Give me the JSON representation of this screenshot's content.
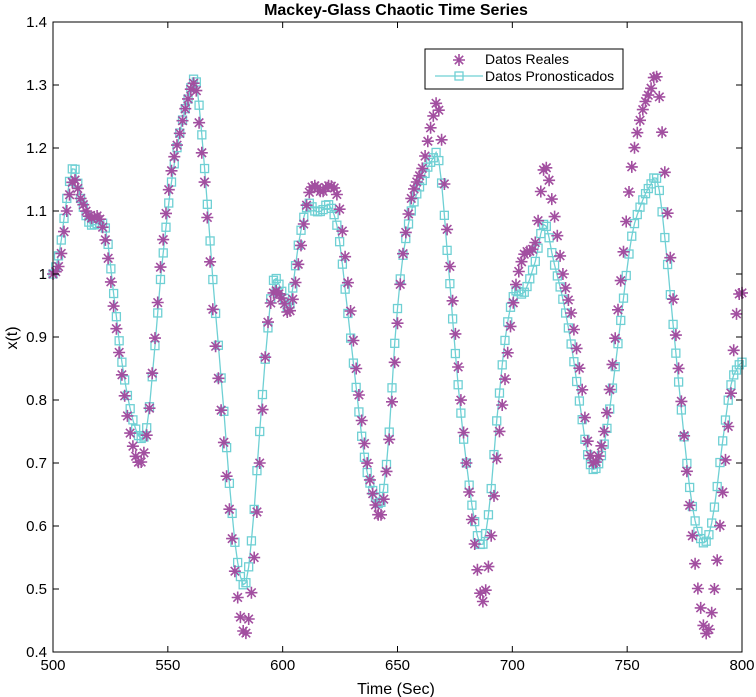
{
  "chart_data": {
    "type": "line",
    "title": "Mackey-Glass Chaotic Time Series",
    "xlabel": "Time (Sec)",
    "ylabel": "x(t)",
    "xlim": [
      500,
      800
    ],
    "ylim": [
      0.4,
      1.4
    ],
    "xticks": [
      500,
      550,
      600,
      650,
      700,
      750,
      800
    ],
    "yticks": [
      0.4,
      0.5,
      0.6,
      0.7,
      0.8,
      0.9,
      1,
      1.1,
      1.2,
      1.3,
      1.4
    ],
    "ytick_labels": [
      "0.4",
      "0.5",
      "0.6",
      "0.7",
      "0.8",
      "0.9",
      "1",
      "1.1",
      "1.2",
      "1.3",
      "1.4"
    ],
    "xtick_labels": [
      "500",
      "550",
      "600",
      "650",
      "700",
      "750",
      "800"
    ],
    "legend": {
      "location": "top-right",
      "entries": [
        "Datos Reales",
        "Datos Pronosticados"
      ]
    },
    "series": [
      {
        "name": "Datos Reales",
        "marker": "asterisk",
        "color": "#a24fa0",
        "keypoints": [
          [
            500,
            1.0
          ],
          [
            503,
            1.02
          ],
          [
            506,
            1.1
          ],
          [
            509,
            1.15
          ],
          [
            512,
            1.12
          ],
          [
            516,
            1.09
          ],
          [
            520,
            1.09
          ],
          [
            523,
            1.05
          ],
          [
            526,
            0.96
          ],
          [
            530,
            0.84
          ],
          [
            534,
            0.74
          ],
          [
            538,
            0.7
          ],
          [
            541,
            0.75
          ],
          [
            544,
            0.88
          ],
          [
            547,
            1.02
          ],
          [
            551,
            1.15
          ],
          [
            555,
            1.22
          ],
          [
            559,
            1.28
          ],
          [
            562,
            1.3
          ],
          [
            564,
            1.22
          ],
          [
            567,
            1.1
          ],
          [
            570,
            0.92
          ],
          [
            574,
            0.75
          ],
          [
            578,
            0.58
          ],
          [
            581,
            0.47
          ],
          [
            584,
            0.43
          ],
          [
            587,
            0.52
          ],
          [
            590,
            0.7
          ],
          [
            593,
            0.9
          ],
          [
            596,
            0.97
          ],
          [
            600,
            0.96
          ],
          [
            603,
            0.94
          ],
          [
            607,
            1.02
          ],
          [
            611,
            1.12
          ],
          [
            614,
            1.14
          ],
          [
            617,
            1.13
          ],
          [
            620,
            1.14
          ],
          [
            624,
            1.12
          ],
          [
            628,
            1.0
          ],
          [
            632,
            0.85
          ],
          [
            636,
            0.72
          ],
          [
            640,
            0.64
          ],
          [
            643,
            0.62
          ],
          [
            646,
            0.72
          ],
          [
            649,
            0.87
          ],
          [
            652,
            1.02
          ],
          [
            656,
            1.12
          ],
          [
            661,
            1.17
          ],
          [
            665,
            1.24
          ],
          [
            668,
            1.26
          ],
          [
            672,
            1.05
          ],
          [
            676,
            0.87
          ],
          [
            680,
            0.7
          ],
          [
            684,
            0.56
          ],
          [
            687,
            0.48
          ],
          [
            690,
            0.55
          ],
          [
            693,
            0.7
          ],
          [
            697,
            0.84
          ],
          [
            701,
            0.97
          ],
          [
            705,
            1.03
          ],
          [
            710,
            1.05
          ],
          [
            714,
            1.17
          ],
          [
            718,
            1.1
          ],
          [
            722,
            1.0
          ],
          [
            726,
            0.93
          ],
          [
            730,
            0.83
          ],
          [
            733,
            0.73
          ],
          [
            736,
            0.7
          ],
          [
            740,
            0.75
          ],
          [
            744,
            0.87
          ],
          [
            748,
            1.02
          ],
          [
            752,
            1.17
          ],
          [
            756,
            1.25
          ],
          [
            760,
            1.29
          ],
          [
            763,
            1.31
          ],
          [
            766,
            1.18
          ],
          [
            770,
            0.96
          ],
          [
            774,
            0.78
          ],
          [
            778,
            0.6
          ],
          [
            782,
            0.47
          ],
          [
            785,
            0.43
          ],
          [
            788,
            0.5
          ],
          [
            791,
            0.63
          ],
          [
            795,
            0.8
          ],
          [
            798,
            0.95
          ],
          [
            800,
            0.97
          ]
        ]
      },
      {
        "name": "Datos Pronosticados",
        "marker": "square",
        "color": "#6fd0d4",
        "keypoints": [
          [
            500,
            1.0
          ],
          [
            503,
            1.04
          ],
          [
            506,
            1.12
          ],
          [
            509,
            1.17
          ],
          [
            512,
            1.12
          ],
          [
            516,
            1.08
          ],
          [
            520,
            1.08
          ],
          [
            523,
            1.07
          ],
          [
            526,
            0.98
          ],
          [
            530,
            0.86
          ],
          [
            534,
            0.78
          ],
          [
            538,
            0.74
          ],
          [
            541,
            0.76
          ],
          [
            544,
            0.87
          ],
          [
            547,
            1.0
          ],
          [
            551,
            1.13
          ],
          [
            555,
            1.22
          ],
          [
            559,
            1.28
          ],
          [
            562,
            1.31
          ],
          [
            564,
            1.25
          ],
          [
            567,
            1.12
          ],
          [
            570,
            0.97
          ],
          [
            574,
            0.8
          ],
          [
            578,
            0.62
          ],
          [
            581,
            0.53
          ],
          [
            584,
            0.51
          ],
          [
            587,
            0.6
          ],
          [
            590,
            0.75
          ],
          [
            593,
            0.89
          ],
          [
            596,
            0.99
          ],
          [
            600,
            0.97
          ],
          [
            603,
            0.95
          ],
          [
            607,
            1.05
          ],
          [
            611,
            1.11
          ],
          [
            614,
            1.1
          ],
          [
            617,
            1.1
          ],
          [
            620,
            1.11
          ],
          [
            624,
            1.07
          ],
          [
            628,
            0.95
          ],
          [
            632,
            0.82
          ],
          [
            636,
            0.7
          ],
          [
            640,
            0.65
          ],
          [
            643,
            0.64
          ],
          [
            646,
            0.73
          ],
          [
            649,
            0.9
          ],
          [
            652,
            1.02
          ],
          [
            656,
            1.1
          ],
          [
            661,
            1.15
          ],
          [
            665,
            1.18
          ],
          [
            668,
            1.18
          ],
          [
            672,
            1.02
          ],
          [
            676,
            0.84
          ],
          [
            680,
            0.7
          ],
          [
            684,
            0.6
          ],
          [
            687,
            0.57
          ],
          [
            690,
            0.63
          ],
          [
            693,
            0.76
          ],
          [
            697,
            0.9
          ],
          [
            701,
            0.97
          ],
          [
            705,
            0.97
          ],
          [
            710,
            1.02
          ],
          [
            714,
            1.08
          ],
          [
            718,
            1.02
          ],
          [
            722,
            0.96
          ],
          [
            726,
            0.88
          ],
          [
            730,
            0.78
          ],
          [
            733,
            0.71
          ],
          [
            736,
            0.69
          ],
          [
            740,
            0.73
          ],
          [
            744,
            0.83
          ],
          [
            748,
            0.95
          ],
          [
            752,
            1.06
          ],
          [
            756,
            1.11
          ],
          [
            760,
            1.14
          ],
          [
            763,
            1.15
          ],
          [
            766,
            1.07
          ],
          [
            770,
            0.92
          ],
          [
            774,
            0.77
          ],
          [
            778,
            0.64
          ],
          [
            782,
            0.58
          ],
          [
            785,
            0.58
          ],
          [
            788,
            0.63
          ],
          [
            791,
            0.72
          ],
          [
            795,
            0.82
          ],
          [
            798,
            0.85
          ],
          [
            800,
            0.86
          ]
        ]
      }
    ]
  }
}
